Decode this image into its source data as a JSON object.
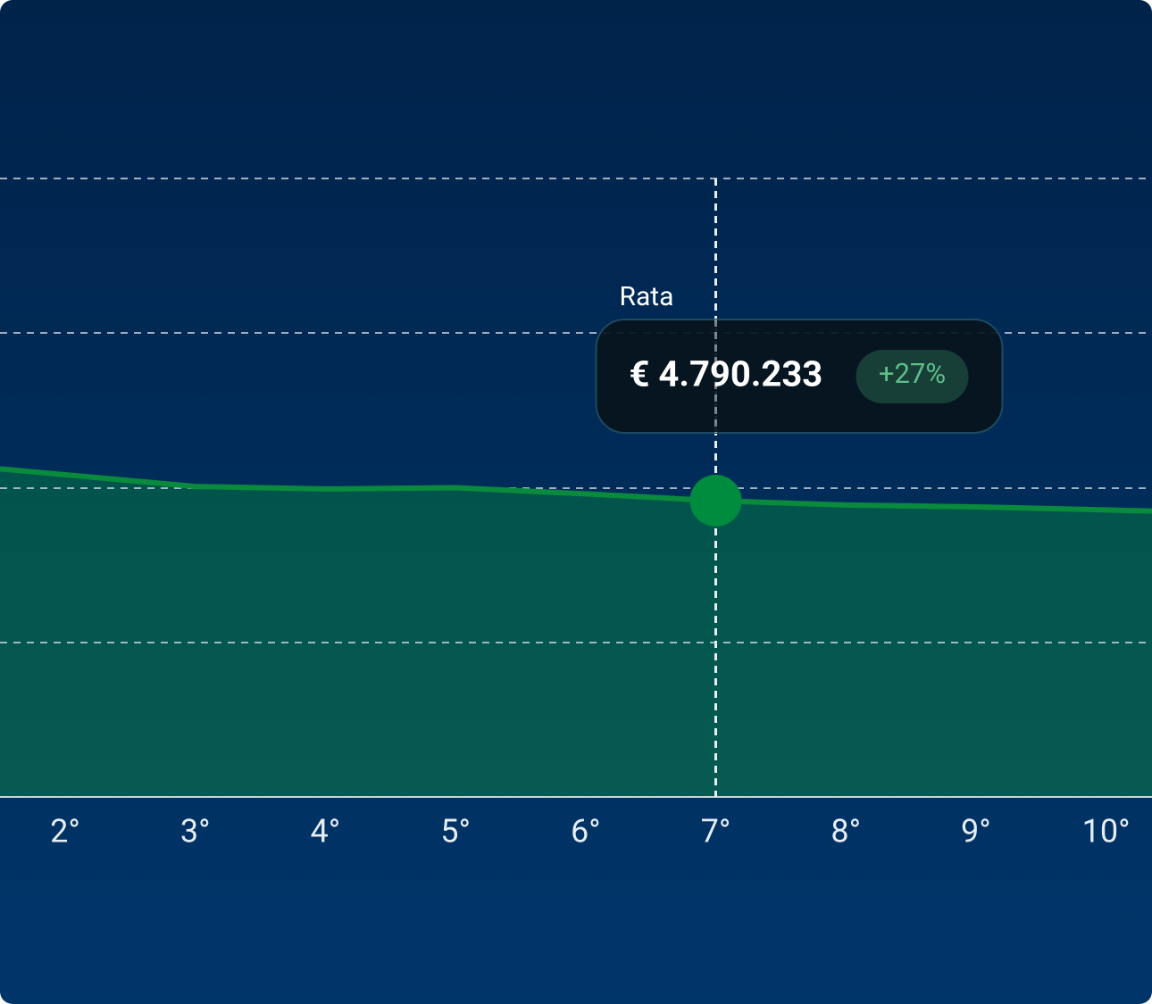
{
  "chart_data": {
    "type": "area",
    "categories": [
      "2°",
      "3°",
      "4°",
      "5°",
      "6°",
      "7°",
      "8°",
      "9°",
      "10°"
    ],
    "series": [
      {
        "name": "Rata",
        "color": "#0a8a3c",
        "values": [
          5210000,
          5020000,
          4980000,
          5000000,
          4900000,
          4790233,
          4720000,
          4690000,
          4640000
        ],
        "value_labels": [
          null,
          null,
          null,
          null,
          null,
          "€ 4.790.233",
          null,
          null,
          null
        ]
      }
    ],
    "annotation": "+27%",
    "ylim": [
      0,
      12500000
    ],
    "grid": true
  }
}
